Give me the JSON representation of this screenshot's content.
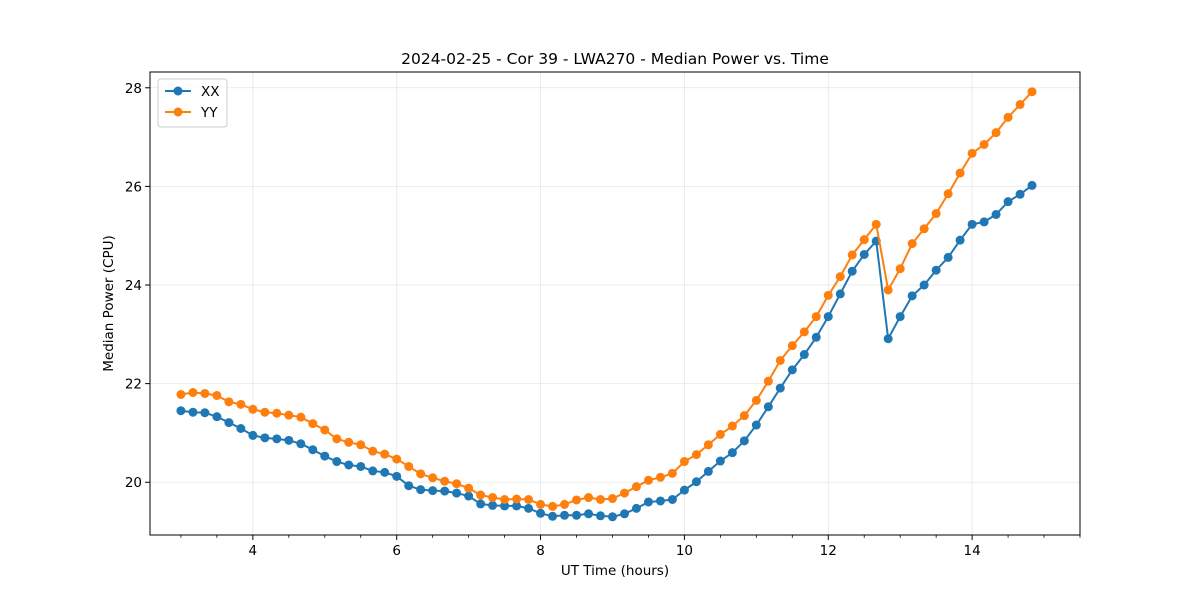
{
  "chart_data": {
    "type": "line",
    "title": "2024-02-25 - Cor 39 - LWA270 - Median Power vs. Time",
    "xlabel": "UT Time (hours)",
    "ylabel": "Median Power (CPU)",
    "xlim": [
      2.57,
      15.5
    ],
    "ylim": [
      18.93,
      28.32
    ],
    "xticks": [
      4,
      6,
      8,
      10,
      12,
      14
    ],
    "xtick_labels": [
      "4",
      "6",
      "8",
      "10",
      "12",
      "14"
    ],
    "x_minor_step": 0.5,
    "yticks": [
      20,
      22,
      24,
      26,
      28
    ],
    "ytick_labels": [
      "20",
      "22",
      "24",
      "26",
      "28"
    ],
    "grid": true,
    "legend_position": "top-left",
    "x": [
      3.0,
      3.167,
      3.333,
      3.5,
      3.667,
      3.833,
      4.0,
      4.167,
      4.333,
      4.5,
      4.667,
      4.833,
      5.0,
      5.167,
      5.333,
      5.5,
      5.667,
      5.833,
      6.0,
      6.167,
      6.333,
      6.5,
      6.667,
      6.833,
      7.0,
      7.167,
      7.333,
      7.5,
      7.667,
      7.833,
      8.0,
      8.167,
      8.333,
      8.5,
      8.667,
      8.833,
      9.0,
      9.167,
      9.333,
      9.5,
      9.667,
      9.833,
      10.0,
      10.167,
      10.333,
      10.5,
      10.667,
      10.833,
      11.0,
      11.167,
      11.333,
      11.5,
      11.667,
      11.833,
      12.0,
      12.167,
      12.333,
      12.5,
      12.667,
      12.833,
      13.0,
      13.167,
      13.333,
      13.5,
      13.667,
      13.833,
      14.0,
      14.167,
      14.333,
      14.5,
      14.667,
      14.833
    ],
    "series": [
      {
        "name": "XX",
        "color": "#1f77b4",
        "values": [
          21.45,
          21.42,
          21.41,
          21.33,
          21.21,
          21.09,
          20.95,
          20.9,
          20.88,
          20.85,
          20.78,
          20.66,
          20.53,
          20.42,
          20.35,
          20.32,
          20.23,
          20.2,
          20.12,
          19.93,
          19.85,
          19.83,
          19.82,
          19.78,
          19.72,
          19.56,
          19.53,
          19.52,
          19.52,
          19.47,
          19.37,
          19.31,
          19.33,
          19.33,
          19.36,
          19.32,
          19.3,
          19.36,
          19.47,
          19.6,
          19.62,
          19.65,
          19.84,
          20.01,
          20.22,
          20.43,
          20.6,
          20.84,
          21.16,
          21.53,
          21.91,
          22.28,
          22.59,
          22.94,
          23.36,
          23.82,
          24.28,
          24.62,
          24.89,
          22.91,
          23.36,
          23.78,
          24.0,
          24.3,
          24.56,
          24.91,
          25.23,
          25.28,
          25.43,
          25.69,
          25.84,
          26.02
        ]
      },
      {
        "name": "YY",
        "color": "#ff7f0e",
        "values": [
          21.78,
          21.82,
          21.8,
          21.76,
          21.63,
          21.58,
          21.48,
          21.42,
          21.4,
          21.36,
          21.32,
          21.19,
          21.06,
          20.88,
          20.81,
          20.76,
          20.63,
          20.57,
          20.47,
          20.32,
          20.17,
          20.09,
          20.02,
          19.97,
          19.88,
          19.74,
          19.69,
          19.65,
          19.66,
          19.65,
          19.55,
          19.51,
          19.55,
          19.64,
          19.69,
          19.65,
          19.67,
          19.78,
          19.91,
          20.04,
          20.1,
          20.18,
          20.42,
          20.56,
          20.76,
          20.97,
          21.14,
          21.35,
          21.66,
          22.05,
          22.47,
          22.77,
          23.05,
          23.36,
          23.79,
          24.17,
          24.61,
          24.92,
          25.23,
          23.9,
          24.33,
          24.84,
          25.14,
          25.45,
          25.85,
          26.27,
          26.67,
          26.85,
          27.09,
          27.4,
          27.66,
          27.92
        ]
      }
    ]
  }
}
